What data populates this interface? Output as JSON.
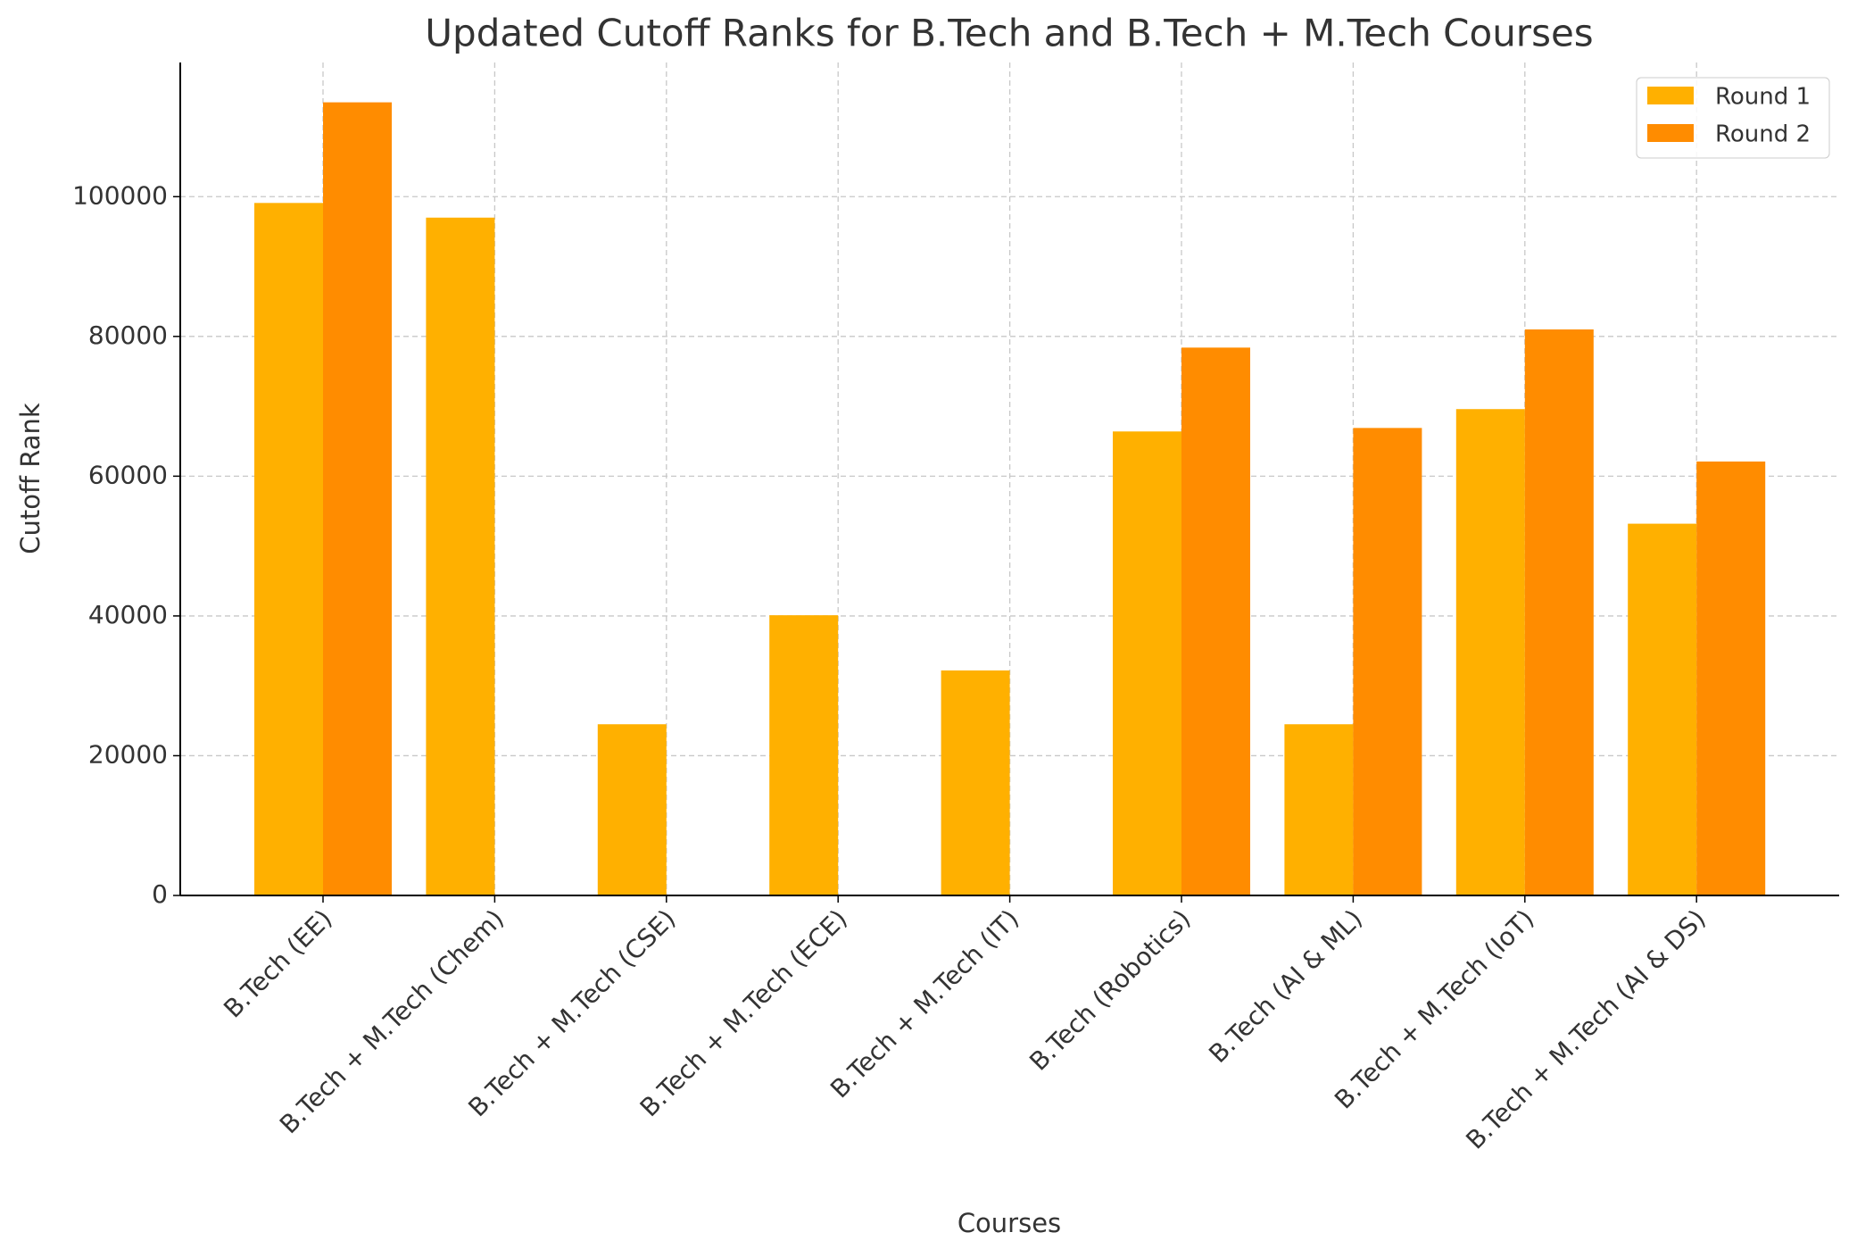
{
  "chart_data": {
    "type": "bar",
    "title": "Updated Cutoff Ranks for B.Tech and B.Tech + M.Tech Courses",
    "x_label": "Courses",
    "y_label": "Cutoff Rank",
    "categories": [
      "B.Tech (EE)",
      "B.Tech + M.Tech (Chem)",
      "B.Tech + M.Tech (CSE)",
      "B.Tech + M.Tech (ECE)",
      "B.Tech + M.Tech (IT)",
      "B.Tech (Robotics)",
      "B.Tech (AI & ML)",
      "B.Tech + M.Tech (IoT)",
      "B.Tech + M.Tech (AI & DS)"
    ],
    "series": [
      {
        "name": "Round 1",
        "color": "#ffb000",
        "values": [
          99100,
          97000,
          24500,
          40100,
          32200,
          66400,
          24500,
          69600,
          53200
        ]
      },
      {
        "name": "Round 2",
        "color": "#ff8c00",
        "values": [
          113500,
          null,
          null,
          null,
          null,
          78400,
          66900,
          81000,
          62100
        ]
      }
    ],
    "ylim": [
      0,
      119200
    ],
    "yticks": [
      0,
      20000,
      40000,
      60000,
      80000,
      100000
    ],
    "grid": true,
    "legend": "upper right"
  }
}
